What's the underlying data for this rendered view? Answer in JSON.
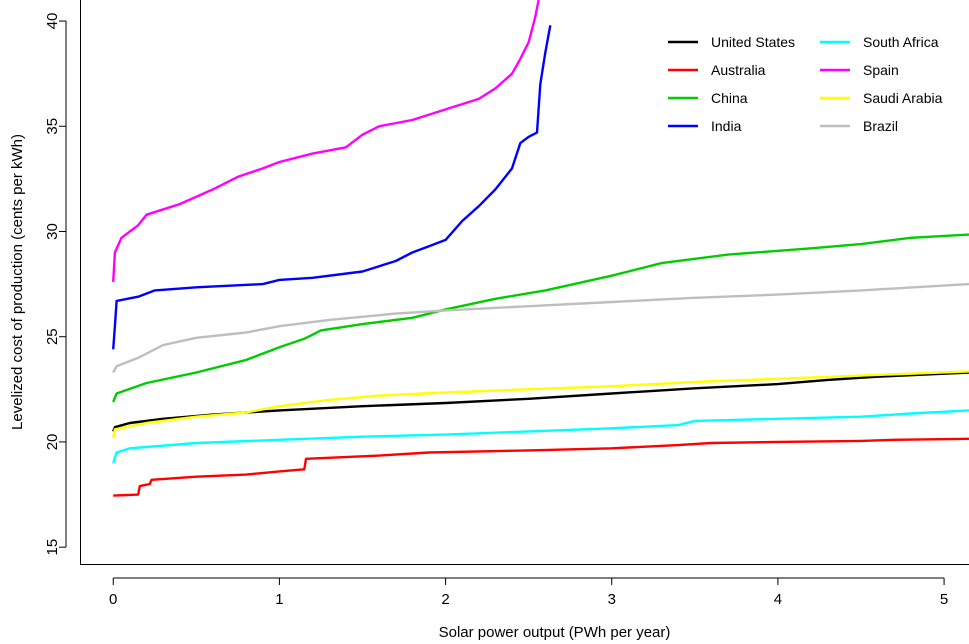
{
  "chart_data": {
    "type": "line",
    "title": "",
    "xlabel": "Solar power output (PWh per year)",
    "ylabel": "Levelized cost of production (cents per kWh)",
    "xlim": [
      -0.2,
      5.15
    ],
    "ylim": [
      14.2,
      41
    ],
    "xticks": [
      0,
      1,
      2,
      3,
      4,
      5
    ],
    "yticks": [
      15,
      20,
      25,
      30,
      35,
      40
    ],
    "grid": false,
    "legend": "top-right",
    "series": [
      {
        "name": "United States",
        "color": "#000000",
        "points": [
          [
            0,
            20.5
          ],
          [
            0.01,
            20.7
          ],
          [
            0.1,
            20.9
          ],
          [
            0.3,
            21.1
          ],
          [
            0.6,
            21.3
          ],
          [
            1.0,
            21.5
          ],
          [
            1.5,
            21.7
          ],
          [
            2.0,
            21.85
          ],
          [
            2.5,
            22.05
          ],
          [
            3.0,
            22.3
          ],
          [
            3.5,
            22.55
          ],
          [
            4.0,
            22.75
          ],
          [
            4.3,
            22.95
          ],
          [
            4.6,
            23.1
          ],
          [
            5.15,
            23.3
          ]
        ]
      },
      {
        "name": "Australia",
        "color": "#ff0000",
        "points": [
          [
            0,
            17.45
          ],
          [
            0.15,
            17.5
          ],
          [
            0.16,
            17.9
          ],
          [
            0.22,
            18.0
          ],
          [
            0.23,
            18.2
          ],
          [
            0.5,
            18.35
          ],
          [
            0.8,
            18.45
          ],
          [
            1.0,
            18.6
          ],
          [
            1.15,
            18.7
          ],
          [
            1.16,
            19.2
          ],
          [
            1.6,
            19.35
          ],
          [
            1.9,
            19.5
          ],
          [
            2.5,
            19.6
          ],
          [
            3.0,
            19.7
          ],
          [
            3.4,
            19.85
          ],
          [
            3.6,
            19.95
          ],
          [
            4.0,
            20.0
          ],
          [
            4.5,
            20.05
          ],
          [
            4.7,
            20.1
          ],
          [
            5.15,
            20.15
          ]
        ]
      },
      {
        "name": "China",
        "color": "#00cc00",
        "points": [
          [
            0,
            21.9
          ],
          [
            0.02,
            22.3
          ],
          [
            0.2,
            22.8
          ],
          [
            0.5,
            23.3
          ],
          [
            0.8,
            23.9
          ],
          [
            1.0,
            24.5
          ],
          [
            1.15,
            24.9
          ],
          [
            1.25,
            25.3
          ],
          [
            1.5,
            25.6
          ],
          [
            1.8,
            25.9
          ],
          [
            2.0,
            26.3
          ],
          [
            2.3,
            26.8
          ],
          [
            2.6,
            27.2
          ],
          [
            3.0,
            27.9
          ],
          [
            3.3,
            28.5
          ],
          [
            3.7,
            28.9
          ],
          [
            4.2,
            29.2
          ],
          [
            4.5,
            29.4
          ],
          [
            4.8,
            29.7
          ],
          [
            5.15,
            29.85
          ]
        ]
      },
      {
        "name": "India",
        "color": "#0000ff",
        "points": [
          [
            0,
            24.4
          ],
          [
            0.01,
            25.5
          ],
          [
            0.02,
            26.7
          ],
          [
            0.15,
            26.9
          ],
          [
            0.25,
            27.2
          ],
          [
            0.5,
            27.35
          ],
          [
            0.9,
            27.5
          ],
          [
            1.0,
            27.7
          ],
          [
            1.2,
            27.8
          ],
          [
            1.5,
            28.1
          ],
          [
            1.7,
            28.6
          ],
          [
            1.8,
            29.0
          ],
          [
            1.9,
            29.3
          ],
          [
            2.0,
            29.6
          ],
          [
            2.1,
            30.5
          ],
          [
            2.2,
            31.2
          ],
          [
            2.3,
            32.0
          ],
          [
            2.4,
            33.0
          ],
          [
            2.45,
            34.2
          ],
          [
            2.5,
            34.5
          ],
          [
            2.55,
            34.7
          ],
          [
            2.57,
            37.0
          ],
          [
            2.6,
            38.5
          ],
          [
            2.63,
            39.8
          ]
        ]
      },
      {
        "name": "South Africa",
        "color": "#00ffff",
        "points": [
          [
            0,
            19.0
          ],
          [
            0.02,
            19.5
          ],
          [
            0.1,
            19.7
          ],
          [
            0.5,
            19.95
          ],
          [
            1.0,
            20.1
          ],
          [
            1.5,
            20.25
          ],
          [
            2.0,
            20.35
          ],
          [
            2.5,
            20.5
          ],
          [
            3.0,
            20.65
          ],
          [
            3.4,
            20.8
          ],
          [
            3.5,
            21.0
          ],
          [
            4.0,
            21.1
          ],
          [
            4.5,
            21.2
          ],
          [
            4.8,
            21.35
          ],
          [
            5.15,
            21.5
          ]
        ]
      },
      {
        "name": "Spain",
        "color": "#ff00ff",
        "points": [
          [
            0,
            27.6
          ],
          [
            0.01,
            29.0
          ],
          [
            0.05,
            29.7
          ],
          [
            0.15,
            30.3
          ],
          [
            0.2,
            30.8
          ],
          [
            0.4,
            31.3
          ],
          [
            0.6,
            32.0
          ],
          [
            0.75,
            32.6
          ],
          [
            0.9,
            33.0
          ],
          [
            1.0,
            33.3
          ],
          [
            1.2,
            33.7
          ],
          [
            1.4,
            34.0
          ],
          [
            1.5,
            34.6
          ],
          [
            1.6,
            35.0
          ],
          [
            1.8,
            35.3
          ],
          [
            2.0,
            35.8
          ],
          [
            2.2,
            36.3
          ],
          [
            2.3,
            36.8
          ],
          [
            2.4,
            37.5
          ],
          [
            2.45,
            38.2
          ],
          [
            2.5,
            39.0
          ],
          [
            2.54,
            40.2
          ],
          [
            2.56,
            41.0
          ]
        ]
      },
      {
        "name": "Saudi Arabia",
        "color": "#ffff00",
        "points": [
          [
            0,
            20.2
          ],
          [
            0.01,
            20.6
          ],
          [
            0.2,
            20.9
          ],
          [
            0.5,
            21.2
          ],
          [
            0.8,
            21.4
          ],
          [
            1.0,
            21.7
          ],
          [
            1.3,
            22.0
          ],
          [
            1.6,
            22.2
          ],
          [
            2.0,
            22.35
          ],
          [
            2.5,
            22.5
          ],
          [
            3.0,
            22.65
          ],
          [
            3.5,
            22.85
          ],
          [
            4.0,
            23.0
          ],
          [
            4.5,
            23.15
          ],
          [
            5.15,
            23.35
          ]
        ]
      },
      {
        "name": "Brazil",
        "color": "#bebebe",
        "points": [
          [
            0,
            23.3
          ],
          [
            0.02,
            23.6
          ],
          [
            0.15,
            24.0
          ],
          [
            0.3,
            24.6
          ],
          [
            0.5,
            24.95
          ],
          [
            0.8,
            25.2
          ],
          [
            1.0,
            25.5
          ],
          [
            1.3,
            25.8
          ],
          [
            1.7,
            26.1
          ],
          [
            2.0,
            26.25
          ],
          [
            2.5,
            26.45
          ],
          [
            3.0,
            26.65
          ],
          [
            3.5,
            26.85
          ],
          [
            4.0,
            27.0
          ],
          [
            4.5,
            27.2
          ],
          [
            5.15,
            27.5
          ]
        ]
      }
    ]
  }
}
